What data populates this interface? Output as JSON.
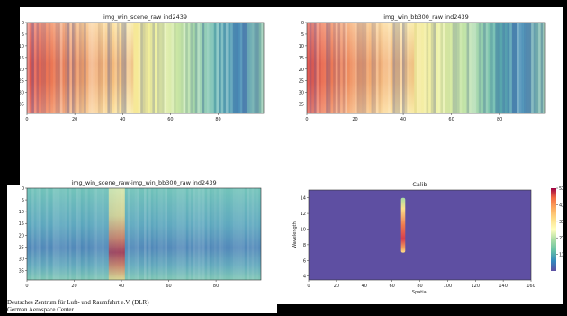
{
  "footer": {
    "line1": "Deutsches Zentrum für Luft- und Raumfahrt e.V. (DLR)",
    "line2": "German Aerospace Center"
  },
  "chart_data": [
    {
      "type": "heatmap",
      "title": "img_win_scene_raw ind2439",
      "xlabel": "",
      "ylabel": "",
      "xticks": [
        "0",
        "20",
        "40",
        "60",
        "80"
      ],
      "yticks": [
        "0",
        "5",
        "10",
        "15",
        "20",
        "25",
        "30",
        "35"
      ],
      "xlim": [
        0,
        99
      ],
      "ylim": [
        39,
        0
      ],
      "colormap": "Spectral_r",
      "pattern": "high values (red) on left near x 0-10 and y 15-25, decreasing to low values (blue) around x 75-95, vertical striping"
    },
    {
      "type": "heatmap",
      "title": "img_win_bb300_raw ind2439",
      "xlabel": "",
      "ylabel": "",
      "xticks": [
        "0",
        "20",
        "40",
        "60",
        "80"
      ],
      "yticks": [
        "0",
        "5",
        "10",
        "15",
        "20",
        "25",
        "30",
        "35"
      ],
      "xlim": [
        0,
        99
      ],
      "ylim": [
        39,
        0
      ],
      "colormap": "Spectral_r",
      "pattern": "nearly identical to scene raw"
    },
    {
      "type": "heatmap",
      "title": "img_win_scene_raw-img_win_bb300_raw ind2439",
      "xlabel": "",
      "ylabel": "",
      "xticks": [
        "0",
        "20",
        "40",
        "60",
        "80"
      ],
      "yticks": [
        "0",
        "5",
        "10",
        "15",
        "20",
        "25",
        "30",
        "35"
      ],
      "xlim": [
        0,
        99
      ],
      "ylim": [
        39,
        0
      ],
      "colormap": "Spectral_r",
      "pattern": "mostly blue/cyan background with a bright vertical column near x 38 peaking red around y 25-30"
    },
    {
      "type": "heatmap",
      "title": "Calib",
      "xlabel": "Spatial",
      "ylabel": "Wavelength",
      "xticks": [
        "0",
        "20",
        "40",
        "60",
        "80",
        "100",
        "120",
        "140",
        "160"
      ],
      "yticks": [
        "4",
        "6",
        "8",
        "10",
        "12",
        "14"
      ],
      "xlim": [
        0,
        160
      ],
      "ylim": [
        3.5,
        15
      ],
      "colormap": "Spectral_r",
      "colorbar": {
        "ticks": [
          "10",
          "20",
          "30",
          "40",
          "50"
        ],
        "range": [
          0,
          50
        ]
      },
      "pattern": "uniform purple background with a narrow vertical column at x 68 from y 7 to 14, red peak near y 8-10"
    }
  ]
}
